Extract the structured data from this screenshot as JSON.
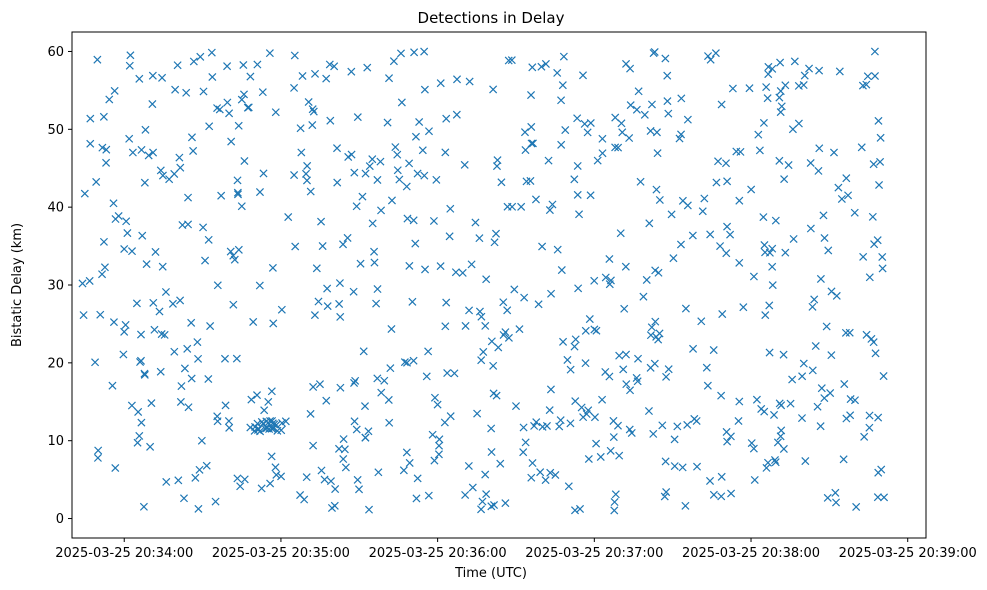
{
  "chart_data": {
    "type": "scatter",
    "title": "Detections in Delay",
    "xlabel": "Time (UTC)",
    "ylabel": "Bistatic Delay (km)",
    "marker": "x",
    "color": "#1f77b4",
    "grid": false,
    "legend": "none",
    "xlim": [
      "2025-03-25 20:33:40",
      "2025-03-25 20:39:07"
    ],
    "ylim": [
      -2.5,
      62.5
    ],
    "x_ticks": [
      "2025-03-25 20:34:00",
      "2025-03-25 20:35:00",
      "2025-03-25 20:36:00",
      "2025-03-25 20:37:00",
      "2025-03-25 20:38:00",
      "2025-03-25 20:39:00"
    ],
    "y_ticks": [
      0,
      10,
      20,
      30,
      40,
      50,
      60
    ],
    "point_count": 760,
    "x_start": "2025-03-25 20:33:44",
    "x_end": "2025-03-25 20:38:51",
    "y_range": [
      1,
      60
    ]
  }
}
